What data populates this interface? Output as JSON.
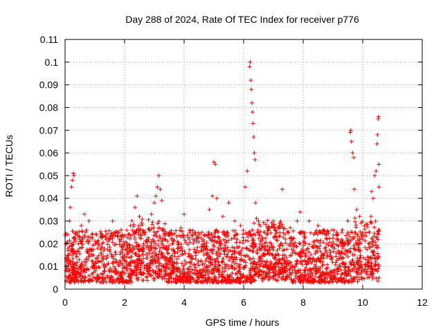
{
  "chart_data": {
    "type": "scatter",
    "title": "Day 288 of 2024, Rate Of TEC Index for receiver p776",
    "xlabel": "GPS time / hours",
    "ylabel": "ROTI / TECUs",
    "xlim": [
      0,
      12
    ],
    "ylim": [
      0,
      0.11
    ],
    "xticks": [
      "0",
      "2",
      "4",
      "6",
      "8",
      "10",
      "12"
    ],
    "yticks": [
      "0",
      "0.01",
      "0.02",
      "0.03",
      "0.04",
      "0.05",
      "0.06",
      "0.07",
      "0.08",
      "0.09",
      "0.1",
      "0.11"
    ],
    "grid": true,
    "marker": "+",
    "color": "#ff0000",
    "series": [
      {
        "name": "ROTI",
        "x_range": [
          0.0,
          10.55
        ],
        "typical_range": [
          0.003,
          0.025
        ],
        "points": [
          [
            0.05,
            0.012
          ],
          [
            0.1,
            0.018
          ],
          [
            0.15,
            0.03
          ],
          [
            0.18,
            0.036
          ],
          [
            0.22,
            0.045
          ],
          [
            0.25,
            0.048
          ],
          [
            0.28,
            0.051
          ],
          [
            0.3,
            0.05
          ],
          [
            0.35,
            0.025
          ],
          [
            0.45,
            0.02
          ],
          [
            0.55,
            0.028
          ],
          [
            0.65,
            0.033
          ],
          [
            0.8,
            0.03
          ],
          [
            0.95,
            0.015
          ],
          [
            1.2,
            0.018
          ],
          [
            1.5,
            0.022
          ],
          [
            1.6,
            0.03
          ],
          [
            1.8,
            0.025
          ],
          [
            2.0,
            0.02
          ],
          [
            2.2,
            0.028
          ],
          [
            2.35,
            0.036
          ],
          [
            2.42,
            0.041
          ],
          [
            2.5,
            0.032
          ],
          [
            2.7,
            0.025
          ],
          [
            2.9,
            0.033
          ],
          [
            3.0,
            0.038
          ],
          [
            3.05,
            0.041
          ],
          [
            3.1,
            0.045
          ],
          [
            3.15,
            0.05
          ],
          [
            3.2,
            0.044
          ],
          [
            3.25,
            0.039
          ],
          [
            3.35,
            0.022
          ],
          [
            3.6,
            0.02
          ],
          [
            3.9,
            0.027
          ],
          [
            4.0,
            0.033
          ],
          [
            4.3,
            0.022
          ],
          [
            4.6,
            0.025
          ],
          [
            4.85,
            0.035
          ],
          [
            4.95,
            0.041
          ],
          [
            5.0,
            0.056
          ],
          [
            5.05,
            0.055
          ],
          [
            5.1,
            0.04
          ],
          [
            5.3,
            0.032
          ],
          [
            5.5,
            0.038
          ],
          [
            5.7,
            0.03
          ],
          [
            5.9,
            0.028
          ],
          [
            6.05,
            0.045
          ],
          [
            6.12,
            0.052
          ],
          [
            6.2,
            0.098
          ],
          [
            6.22,
            0.1
          ],
          [
            6.24,
            0.092
          ],
          [
            6.26,
            0.088
          ],
          [
            6.28,
            0.082
          ],
          [
            6.3,
            0.078
          ],
          [
            6.32,
            0.073
          ],
          [
            6.34,
            0.067
          ],
          [
            6.36,
            0.06
          ],
          [
            6.38,
            0.057
          ],
          [
            6.4,
            0.038
          ],
          [
            6.5,
            0.03
          ],
          [
            6.7,
            0.025
          ],
          [
            7.0,
            0.03
          ],
          [
            7.2,
            0.028
          ],
          [
            7.3,
            0.044
          ],
          [
            7.5,
            0.025
          ],
          [
            7.8,
            0.03
          ],
          [
            7.9,
            0.034
          ],
          [
            8.0,
            0.025
          ],
          [
            8.2,
            0.03
          ],
          [
            8.5,
            0.028
          ],
          [
            8.8,
            0.022
          ],
          [
            9.0,
            0.02
          ],
          [
            9.3,
            0.025
          ],
          [
            9.5,
            0.03
          ],
          [
            9.58,
            0.069
          ],
          [
            9.6,
            0.07
          ],
          [
            9.62,
            0.065
          ],
          [
            9.66,
            0.06
          ],
          [
            9.7,
            0.058
          ],
          [
            9.72,
            0.044
          ],
          [
            9.8,
            0.035
          ],
          [
            9.9,
            0.032
          ],
          [
            10.0,
            0.025
          ],
          [
            10.2,
            0.02
          ],
          [
            10.3,
            0.043
          ],
          [
            10.35,
            0.04
          ],
          [
            10.4,
            0.05
          ],
          [
            10.45,
            0.052
          ],
          [
            10.48,
            0.064
          ],
          [
            10.5,
            0.068
          ],
          [
            10.52,
            0.075
          ],
          [
            10.53,
            0.076
          ],
          [
            10.54,
            0.055
          ],
          [
            10.55,
            0.045
          ]
        ]
      }
    ]
  }
}
